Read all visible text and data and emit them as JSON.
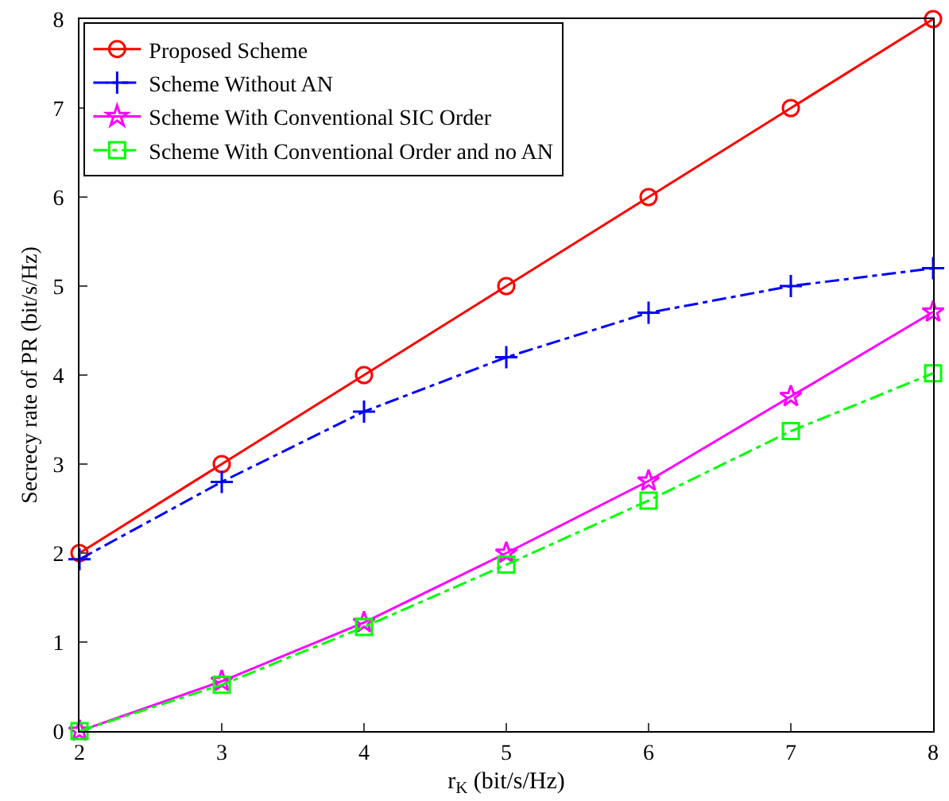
{
  "chart_data": {
    "type": "line",
    "xlabel": "r$_{K}$ (bit/s/Hz)",
    "ylabel": "Secrecy rate of PR (bit/s/Hz)",
    "x": [
      2,
      3,
      4,
      5,
      6,
      7,
      8
    ],
    "xlim": [
      2,
      8
    ],
    "xticks": [
      2,
      3,
      4,
      5,
      6,
      7,
      8
    ],
    "ylim": [
      0,
      8
    ],
    "yticks": [
      0,
      1,
      2,
      3,
      4,
      5,
      6,
      7,
      8
    ],
    "grid": false,
    "legend": "top left",
    "series": [
      {
        "name": "Proposed Scheme",
        "color": "#ff0000",
        "marker": "circle",
        "line_style": "solid",
        "values": [
          2,
          3,
          4,
          5,
          6,
          7,
          8
        ]
      },
      {
        "name": "Scheme Without AN",
        "color": "#0000ff",
        "marker": "cross",
        "line_style": "dashdot",
        "values": [
          1.93,
          2.8,
          3.59,
          4.2,
          4.7,
          5.0,
          5.2
        ]
      },
      {
        "name": "Scheme With Conventional SIC Order",
        "color": "#ff00ff",
        "marker": "star",
        "line_style": "solid",
        "values": [
          0,
          0.56,
          1.22,
          2.0,
          2.81,
          3.76,
          4.71
        ]
      },
      {
        "name": "Scheme With Conventional Order and no AN",
        "color": "#00ff00",
        "marker": "square",
        "line_style": "dashdot",
        "values": [
          0,
          0.52,
          1.17,
          1.87,
          2.59,
          3.37,
          4.02
        ]
      }
    ]
  }
}
